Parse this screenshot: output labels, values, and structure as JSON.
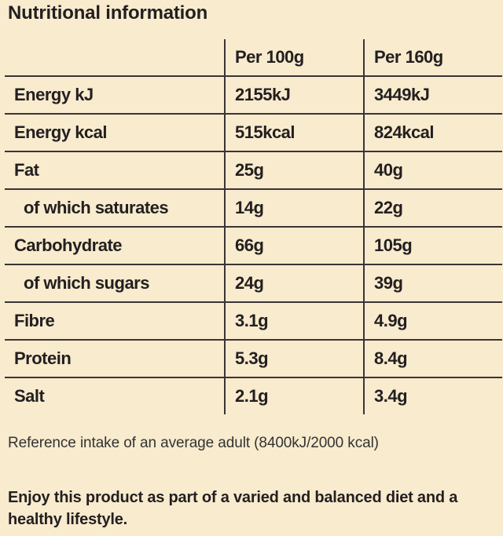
{
  "title": "Nutritional information",
  "table": {
    "columns": [
      "",
      "Per 100g",
      "Per 160g"
    ],
    "rows": [
      {
        "label": "Energy kJ",
        "per100": "2155kJ",
        "per160": "3449kJ",
        "indent": false
      },
      {
        "label": "Energy kcal",
        "per100": "515kcal",
        "per160": "824kcal",
        "indent": false
      },
      {
        "label": "Fat",
        "per100": "25g",
        "per160": "40g",
        "indent": false
      },
      {
        "label": "of which saturates",
        "per100": "14g",
        "per160": "22g",
        "indent": true
      },
      {
        "label": "Carbohydrate",
        "per100": "66g",
        "per160": "105g",
        "indent": false
      },
      {
        "label": "of which sugars",
        "per100": "24g",
        "per160": "39g",
        "indent": true
      },
      {
        "label": "Fibre",
        "per100": "3.1g",
        "per160": "4.9g",
        "indent": false
      },
      {
        "label": "Protein",
        "per100": "5.3g",
        "per160": "8.4g",
        "indent": false
      },
      {
        "label": "Salt",
        "per100": "2.1g",
        "per160": "3.4g",
        "indent": false
      }
    ]
  },
  "reference_note": "Reference intake of an average adult (8400kJ/2000 kcal)",
  "footer": "Enjoy this product as part of a varied and balanced diet and a healthy lifestyle.",
  "colors": {
    "background": "#f8ebce",
    "text": "#231f20",
    "rule": "#3a3436"
  }
}
